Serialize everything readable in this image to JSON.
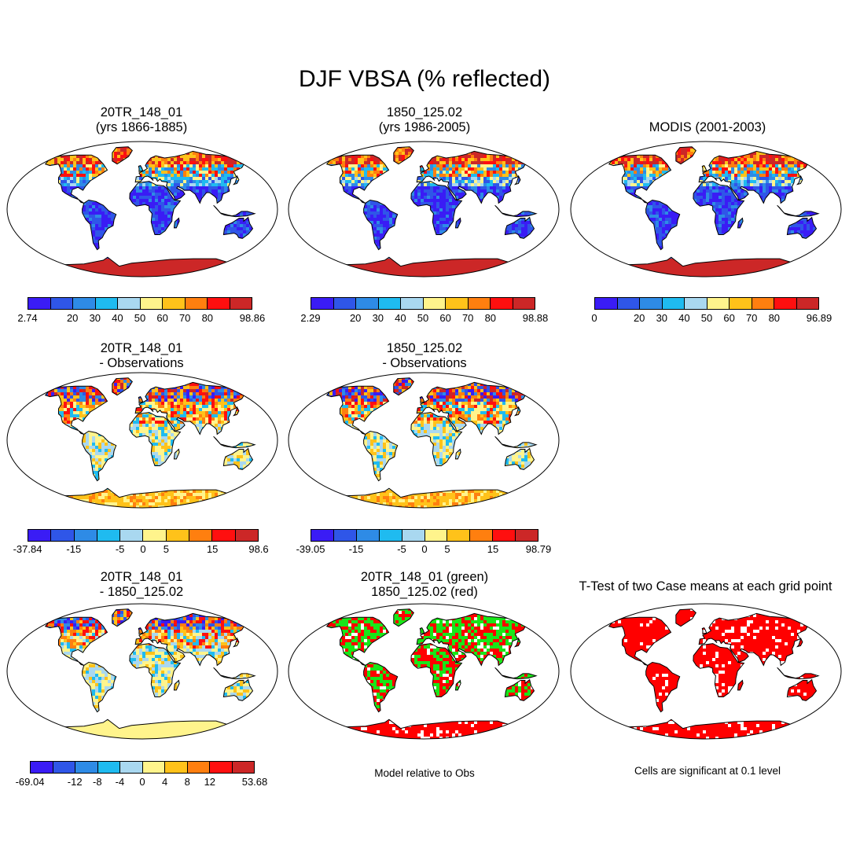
{
  "main_title": "DJF VBSA (% reflected)",
  "palette": [
    "#3a1cf5",
    "#2f56e8",
    "#2e8be6",
    "#1fbbf0",
    "#a9d8f0",
    "#fff48c",
    "#ffc21a",
    "#ff7f0f",
    "#ff0f0f",
    "#cc2727"
  ],
  "panels": [
    {
      "title1": "20TR_148_01",
      "title2": "(yrs 1866-1885)",
      "scheme": "abs",
      "colorbar_labels": [
        "2.74",
        "20",
        "30",
        "40",
        "50",
        "60",
        "70",
        "80",
        "98.86"
      ]
    },
    {
      "title1": "1850_125.02",
      "title2": "(yrs 1986-2005)",
      "scheme": "abs",
      "colorbar_labels": [
        "2.29",
        "20",
        "30",
        "40",
        "50",
        "60",
        "70",
        "80",
        "98.88"
      ]
    },
    {
      "title1": "MODIS (2001-2003)",
      "title2": "",
      "scheme": "abs",
      "colorbar_labels": [
        "0",
        "20",
        "30",
        "40",
        "50",
        "60",
        "70",
        "80",
        "96.89"
      ]
    },
    {
      "title1": "20TR_148_01",
      "title2": "- Observations",
      "scheme": "diff",
      "colorbar_labels": [
        "-37.84",
        "-15",
        "-5",
        "0",
        "5",
        "15",
        "98.6"
      ]
    },
    {
      "title1": "1850_125.02",
      "title2": "- Observations",
      "scheme": "diff",
      "colorbar_labels": [
        "-39.05",
        "-15",
        "-5",
        "0",
        "5",
        "15",
        "98.79"
      ]
    },
    {
      "title1": "20TR_148_01",
      "title2": "- 1850_125.02",
      "scheme": "diff2",
      "colorbar_labels": [
        "-69.04",
        "-12",
        "-8",
        "-4",
        "0",
        "4",
        "8",
        "12",
        "53.68"
      ]
    },
    {
      "title1": "20TR_148_01 (green)",
      "title2": "1850_125.02 (red)",
      "scheme": "greenred",
      "note": "Model relative to Obs"
    },
    {
      "title1": "T-Test of two Case means at each grid point",
      "title2": "",
      "scheme": "ttest",
      "note": "Cells are significant at 0.1 level"
    }
  ]
}
